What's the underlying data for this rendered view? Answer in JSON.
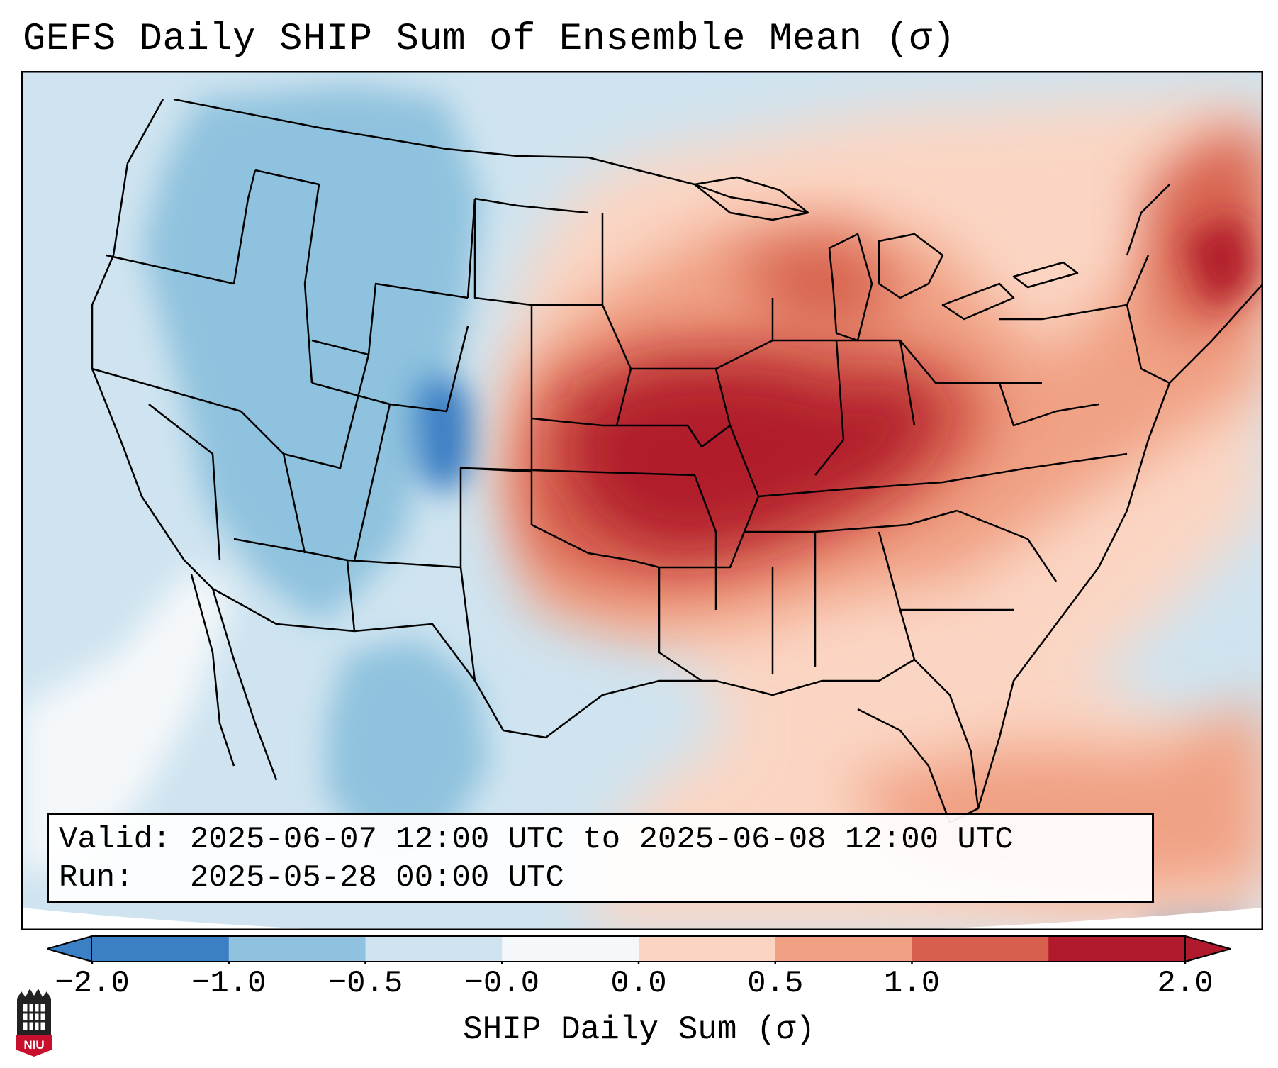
{
  "title": "GEFS Daily SHIP Sum of Ensemble Mean (σ)",
  "info": {
    "valid_label": "Valid:",
    "valid_value": "2025-06-07 12:00 UTC to 2025-06-08 12:00 UTC",
    "run_label": "Run:",
    "run_value": "2025-05-28 00:00 UTC"
  },
  "colorbar": {
    "label": "SHIP Daily Sum (σ)",
    "ticks": [
      "−2.0",
      "−1.0",
      "−0.5",
      "−0.0",
      "0.0",
      "0.5",
      "1.0",
      "2.0"
    ],
    "colors": [
      "#3b7fc4",
      "#8fc2de",
      "#cfe4f0",
      "#f5f8fa",
      "#fbd5c3",
      "#f0a184",
      "#d6604d",
      "#b11a2c"
    ],
    "extend": "both"
  },
  "map": {
    "region": "Continental United States",
    "projection": "Lambert conformal",
    "field": "SHIP daily sum anomaly (σ)",
    "max_anomaly_region": "Central Plains and Mid-Mississippi Valley",
    "min_anomaly_region": "Colorado Rockies"
  },
  "logo": {
    "text": "NIU",
    "color": "#c8102e"
  }
}
